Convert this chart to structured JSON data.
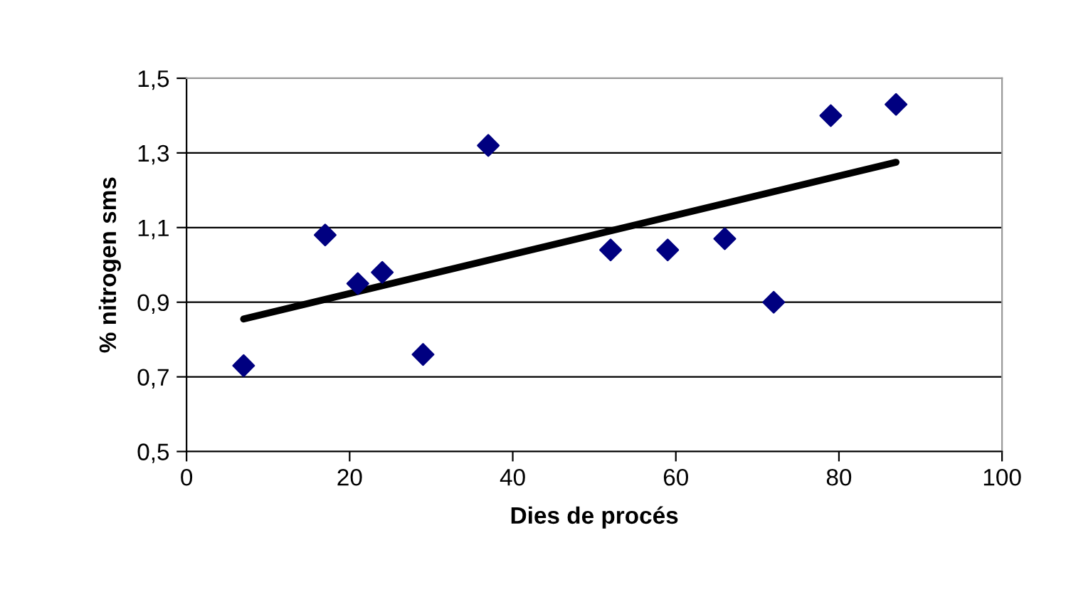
{
  "chart_data": {
    "type": "scatter",
    "xlabel": "Dies de procés",
    "ylabel": "% nitrogen sms",
    "xlim": [
      0,
      100
    ],
    "xticks": [
      0,
      20,
      40,
      60,
      80,
      100
    ],
    "ylim": [
      0.5,
      1.5
    ],
    "yticks": [
      {
        "value": 0.5,
        "label": "0,5"
      },
      {
        "value": 0.7,
        "label": "0,7"
      },
      {
        "value": 0.9,
        "label": "0,9"
      },
      {
        "value": 1.1,
        "label": "1,1"
      },
      {
        "value": 1.3,
        "label": "1,3"
      },
      {
        "value": 1.5,
        "label": "1,5"
      }
    ],
    "grid": "y",
    "legend": false,
    "series": [
      {
        "marker": "diamond",
        "color": "#000080",
        "x": [
          7,
          17,
          21,
          24,
          29,
          37,
          52,
          59,
          66,
          72,
          79,
          87
        ],
        "values": [
          0.73,
          1.08,
          0.95,
          0.98,
          0.76,
          1.32,
          1.04,
          1.04,
          1.07,
          0.9,
          1.4,
          1.43
        ]
      },
      {
        "type": "line",
        "marker": "none",
        "color": "#000000",
        "x": [
          7,
          87
        ],
        "values": [
          0.855,
          1.275
        ]
      }
    ]
  }
}
